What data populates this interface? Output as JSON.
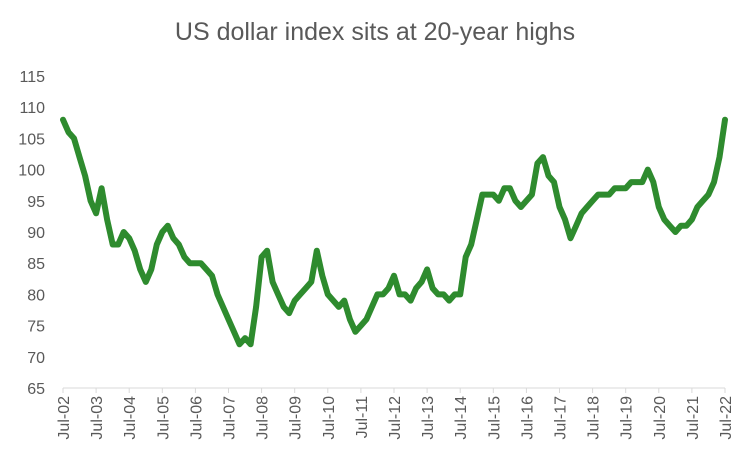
{
  "chart_data": {
    "type": "line",
    "title": "US dollar index sits at 20-year highs",
    "xlabel": "",
    "ylabel": "",
    "ylim": [
      65,
      115
    ],
    "yticks": [
      65,
      70,
      75,
      80,
      85,
      90,
      95,
      100,
      105,
      110,
      115
    ],
    "xticks": [
      "Jul-02",
      "Jul-03",
      "Jul-04",
      "Jul-05",
      "Jul-06",
      "Jul-07",
      "Jul-08",
      "Jul-09",
      "Jul-10",
      "Jul-11",
      "Jul-12",
      "Jul-13",
      "Jul-14",
      "Jul-15",
      "Jul-16",
      "Jul-17",
      "Jul-18",
      "Jul-19",
      "Jul-20",
      "Jul-21",
      "Jul-22"
    ],
    "grid": false,
    "line_color": "#2e8b2e",
    "x": [
      "2002-07",
      "2002-09",
      "2002-11",
      "2003-01",
      "2003-03",
      "2003-05",
      "2003-07",
      "2003-09",
      "2003-11",
      "2004-01",
      "2004-03",
      "2004-05",
      "2004-07",
      "2004-09",
      "2004-11",
      "2005-01",
      "2005-03",
      "2005-05",
      "2005-07",
      "2005-09",
      "2005-11",
      "2006-01",
      "2006-03",
      "2006-05",
      "2006-07",
      "2006-09",
      "2006-11",
      "2007-01",
      "2007-03",
      "2007-05",
      "2007-07",
      "2007-09",
      "2007-11",
      "2008-01",
      "2008-03",
      "2008-05",
      "2008-07",
      "2008-09",
      "2008-11",
      "2009-01",
      "2009-03",
      "2009-05",
      "2009-07",
      "2009-09",
      "2009-11",
      "2010-01",
      "2010-03",
      "2010-05",
      "2010-07",
      "2010-09",
      "2010-11",
      "2011-01",
      "2011-03",
      "2011-05",
      "2011-07",
      "2011-09",
      "2011-11",
      "2012-01",
      "2012-03",
      "2012-05",
      "2012-07",
      "2012-09",
      "2012-11",
      "2013-01",
      "2013-03",
      "2013-05",
      "2013-07",
      "2013-09",
      "2013-11",
      "2014-01",
      "2014-03",
      "2014-05",
      "2014-07",
      "2014-09",
      "2014-11",
      "2015-01",
      "2015-03",
      "2015-05",
      "2015-07",
      "2015-09",
      "2015-11",
      "2016-01",
      "2016-03",
      "2016-05",
      "2016-07",
      "2016-09",
      "2016-11",
      "2017-01",
      "2017-03",
      "2017-05",
      "2017-07",
      "2017-09",
      "2017-11",
      "2018-01",
      "2018-03",
      "2018-05",
      "2018-07",
      "2018-09",
      "2018-11",
      "2019-01",
      "2019-03",
      "2019-05",
      "2019-07",
      "2019-09",
      "2019-11",
      "2020-01",
      "2020-03",
      "2020-05",
      "2020-07",
      "2020-09",
      "2020-11",
      "2021-01",
      "2021-03",
      "2021-05",
      "2021-07",
      "2021-09",
      "2021-11",
      "2022-01",
      "2022-03",
      "2022-05",
      "2022-07"
    ],
    "values": [
      108,
      106,
      105,
      102,
      99,
      95,
      93,
      97,
      92,
      88,
      88,
      90,
      89,
      87,
      84,
      82,
      84,
      88,
      90,
      91,
      89,
      88,
      86,
      85,
      85,
      85,
      84,
      83,
      80,
      78,
      76,
      74,
      72,
      73,
      72,
      78,
      86,
      87,
      82,
      80,
      78,
      77,
      79,
      80,
      81,
      82,
      87,
      83,
      80,
      79,
      78,
      79,
      76,
      74,
      75,
      76,
      78,
      80,
      80,
      81,
      83,
      80,
      80,
      79,
      81,
      82,
      84,
      81,
      80,
      80,
      79,
      80,
      80,
      86,
      88,
      92,
      96,
      96,
      96,
      95,
      97,
      97,
      95,
      94,
      95,
      96,
      101,
      102,
      99,
      98,
      94,
      92,
      89,
      91,
      93,
      94,
      95,
      96,
      96,
      96,
      97,
      97,
      97,
      98,
      98,
      98,
      100,
      98,
      94,
      92,
      91,
      90,
      91,
      91,
      92,
      94,
      95,
      96,
      98,
      102,
      108
    ]
  }
}
